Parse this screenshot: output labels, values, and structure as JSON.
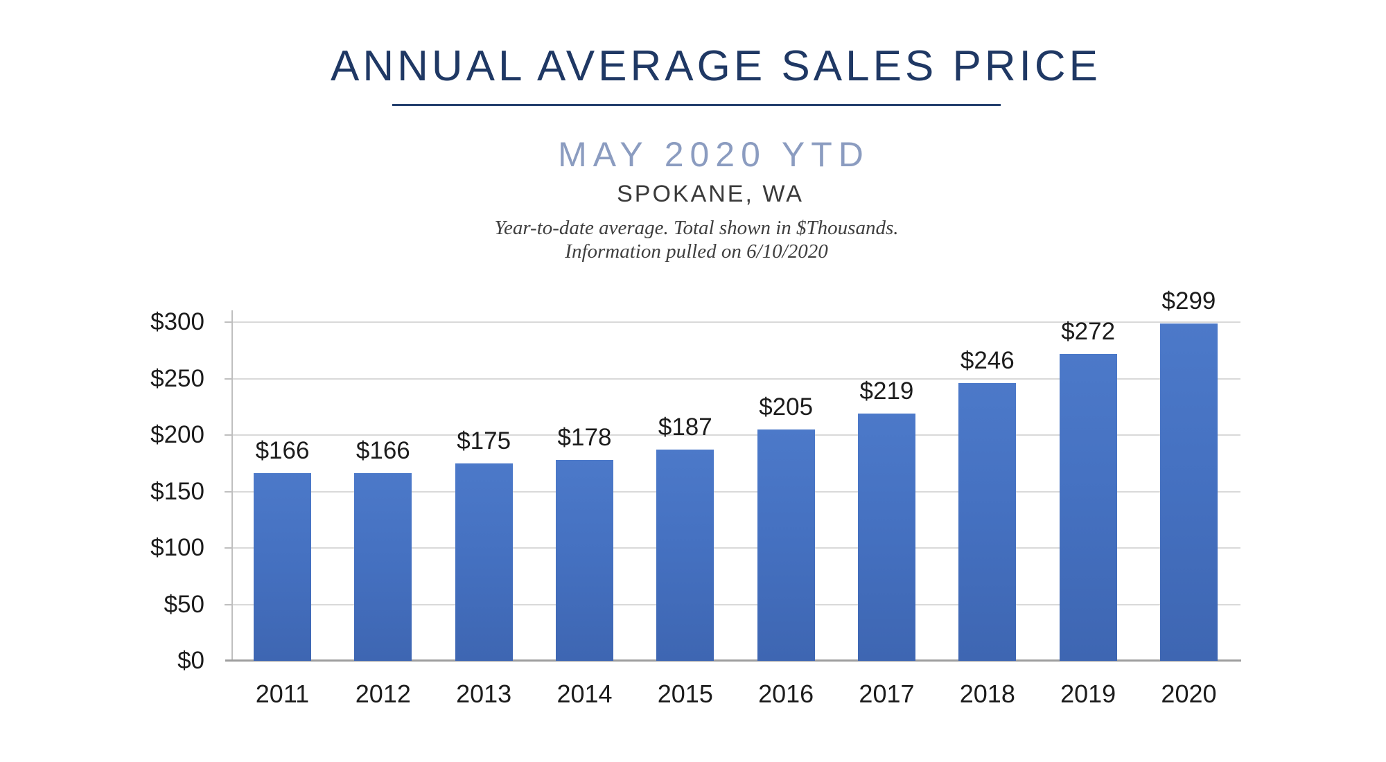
{
  "header": {
    "title": "ANNUAL AVERAGE SALES PRICE",
    "subtitle": "MAY 2020 YTD",
    "location": "SPOKANE, WA",
    "note_line1": "Year-to-date average.  Total shown in $Thousands.",
    "note_line2": "Information pulled on 6/10/2020"
  },
  "colors": {
    "title_navy": "#1F3864",
    "subtitle_blue_gray": "#8B9CC0",
    "bar_gradient_top": "#4C79C9",
    "bar_gradient_bottom": "#3E66B2",
    "gridline": "#D9D9D9",
    "axis_line": "#9E9E9E",
    "label_text": "#1C1C1C"
  },
  "chart_data": {
    "type": "bar",
    "title": "Annual Average Sales Price, May 2020 YTD, Spokane WA ($Thousands)",
    "categories": [
      "2011",
      "2012",
      "2013",
      "2014",
      "2015",
      "2016",
      "2017",
      "2018",
      "2019",
      "2020"
    ],
    "values": [
      166,
      166,
      175,
      178,
      187,
      205,
      219,
      246,
      272,
      299
    ],
    "bar_labels": [
      "$166",
      "$166",
      "$175",
      "$178",
      "$187",
      "$205",
      "$219",
      "$246",
      "$272",
      "$299"
    ],
    "xlabel": "",
    "ylabel": "",
    "ylim": [
      0,
      300
    ],
    "y_ticks": [
      0,
      50,
      100,
      150,
      200,
      250,
      300
    ],
    "y_tick_labels": [
      "$0",
      "$50",
      "$100",
      "$150",
      "$200",
      "$250",
      "$300"
    ],
    "grid": true,
    "legend_position": "none"
  }
}
